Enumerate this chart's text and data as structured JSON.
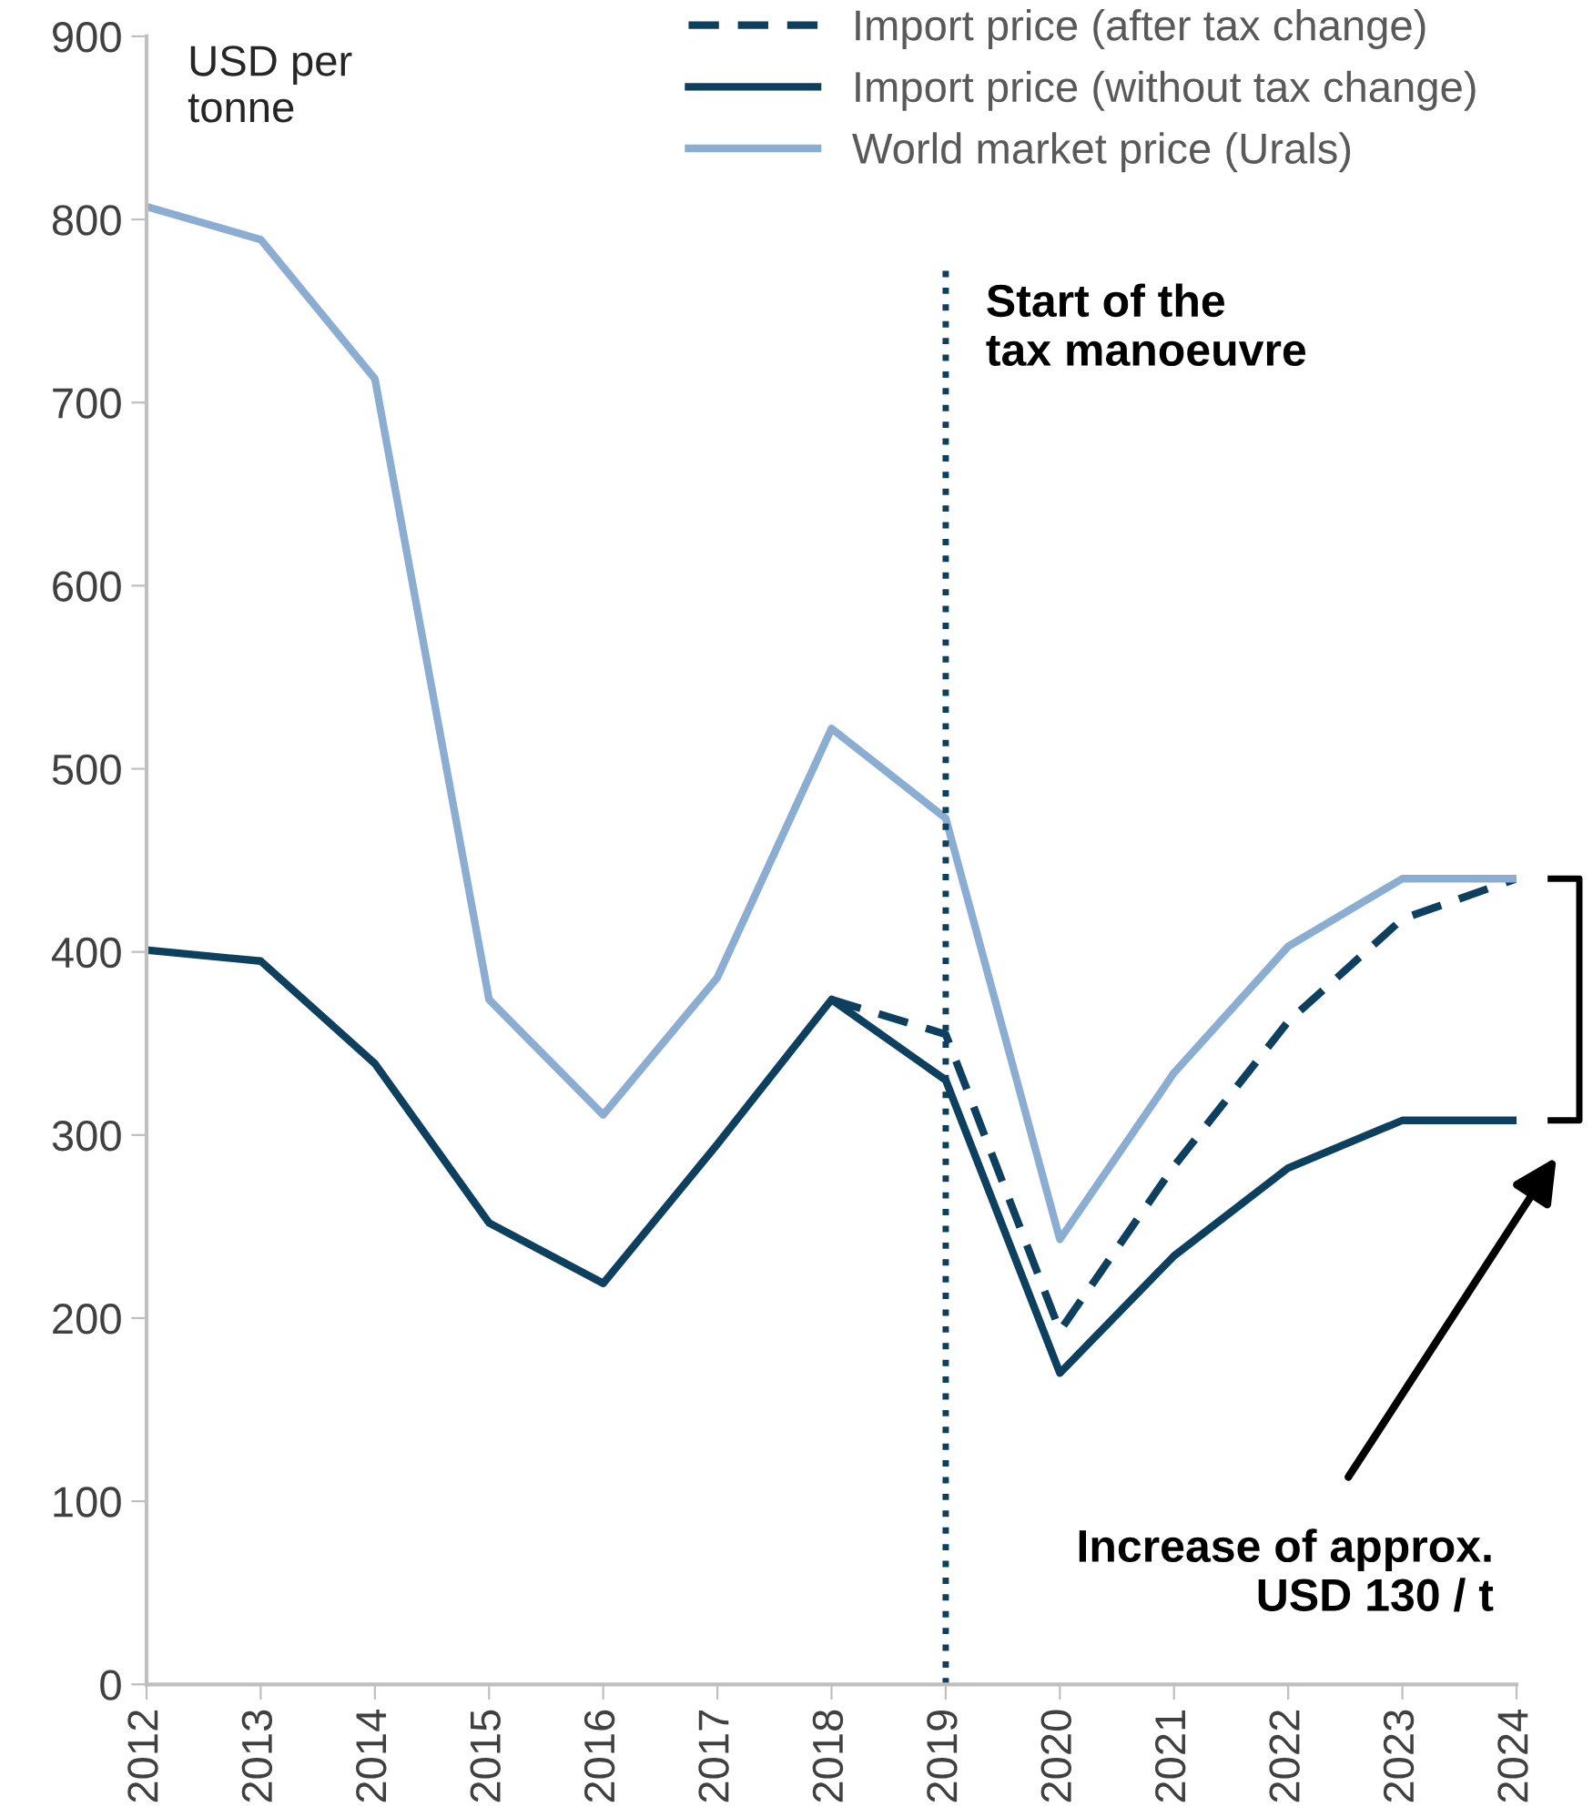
{
  "chart_data": {
    "type": "line",
    "ylabel": "USD per\ntonne",
    "categories": [
      "2012",
      "2013",
      "2014",
      "2015",
      "2016",
      "2017",
      "2018",
      "2019",
      "2020",
      "2021",
      "2022",
      "2023",
      "2024"
    ],
    "series": [
      {
        "name": "Import price (after tax change)",
        "color": "#0d3f5e",
        "line_style": "dashed",
        "values": [
          null,
          null,
          null,
          null,
          null,
          null,
          374,
          355,
          193,
          283,
          362,
          418,
          440
        ]
      },
      {
        "name": "Import price (without tax change)",
        "color": "#0d3f5e",
        "line_style": "solid",
        "values": [
          401,
          395,
          339,
          252,
          219,
          295,
          374,
          330,
          170,
          234,
          282,
          308,
          308
        ]
      },
      {
        "name": "World market price (Urals)",
        "color": "#8aadd1",
        "line_style": "solid",
        "values": [
          807,
          789,
          713,
          374,
          311,
          386,
          522,
          473,
          243,
          334,
          403,
          440,
          440
        ]
      }
    ],
    "ylim": [
      0,
      900
    ],
    "yticks": [
      0,
      100,
      200,
      300,
      400,
      500,
      600,
      700,
      800,
      900
    ],
    "ref_lines": [
      {
        "axis": "x",
        "value": "2019",
        "label": "Start of the\ntax manoeuvre",
        "color": "#0d3f5e",
        "line_style": "dotted"
      }
    ],
    "annotations": [
      "Increase of approx.\nUSD 130 / t"
    ],
    "grid": false,
    "legend": "top right",
    "marker": "none"
  }
}
